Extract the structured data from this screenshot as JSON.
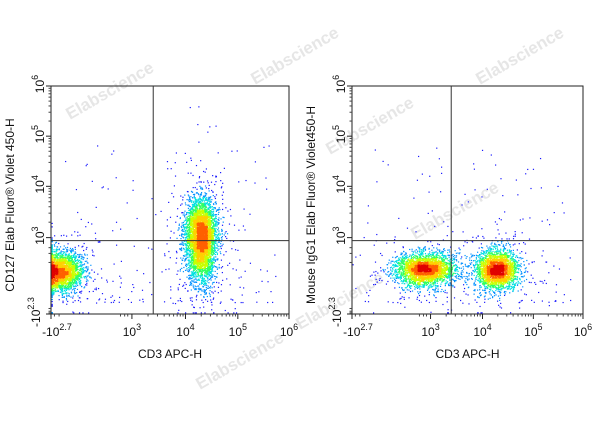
{
  "watermark": "Elabscience",
  "palette": [
    "#1a1aff",
    "#0090ff",
    "#00e0e0",
    "#30ff60",
    "#c8ff00",
    "#ffd000",
    "#ff6000",
    "#e00000"
  ],
  "chart_data": [
    {
      "type": "scatter",
      "style": "density-dot-plot",
      "title": "",
      "xlabel": "CD3 APC-H",
      "ylabel": "CD127 Elab Fluor® Violet 450-H",
      "x_ticks": [
        {
          "base": "-10",
          "exp": "2.7"
        },
        {
          "base": "10",
          "exp": "3"
        },
        {
          "base": "10",
          "exp": "4"
        },
        {
          "base": "10",
          "exp": "5"
        },
        {
          "base": "10",
          "exp": "6"
        }
      ],
      "y_ticks": [
        {
          "base": "-10",
          "exp": "2.3"
        },
        {
          "base": "10",
          "exp": "3"
        },
        {
          "base": "10",
          "exp": "4"
        },
        {
          "base": "10",
          "exp": "5"
        },
        {
          "base": "10",
          "exp": "6"
        }
      ],
      "gate": {
        "x": 2500,
        "y": 700
      },
      "populations": [
        {
          "x_center": -100,
          "y_center": 15,
          "count": 2600,
          "spread": "medium"
        },
        {
          "x_center": 20000,
          "y_center": 1300,
          "count": 3200,
          "spread": "tall"
        },
        {
          "x_center": 20000,
          "y_center": 120,
          "count": 1500,
          "spread": "tall"
        }
      ]
    },
    {
      "type": "scatter",
      "style": "density-dot-plot",
      "title": "",
      "xlabel": "CD3 APC-H",
      "ylabel": "Mouse IgG1 Elab Fluor® Violet450-H",
      "x_ticks": [
        {
          "base": "-10",
          "exp": "2.7"
        },
        {
          "base": "10",
          "exp": "3"
        },
        {
          "base": "10",
          "exp": "4"
        },
        {
          "base": "10",
          "exp": "5"
        },
        {
          "base": "10",
          "exp": "6"
        }
      ],
      "y_ticks": [
        {
          "base": "-10",
          "exp": "2.3"
        },
        {
          "base": "10",
          "exp": "3"
        },
        {
          "base": "10",
          "exp": "4"
        },
        {
          "base": "10",
          "exp": "5"
        },
        {
          "base": "10",
          "exp": "6"
        }
      ],
      "gate": {
        "x": 2500,
        "y": 700
      },
      "populations": [
        {
          "x_center": 400,
          "y_center": 20,
          "count": 2800,
          "spread": "wide"
        },
        {
          "x_center": 20000,
          "y_center": 20,
          "count": 2600,
          "spread": "medium"
        }
      ]
    }
  ]
}
